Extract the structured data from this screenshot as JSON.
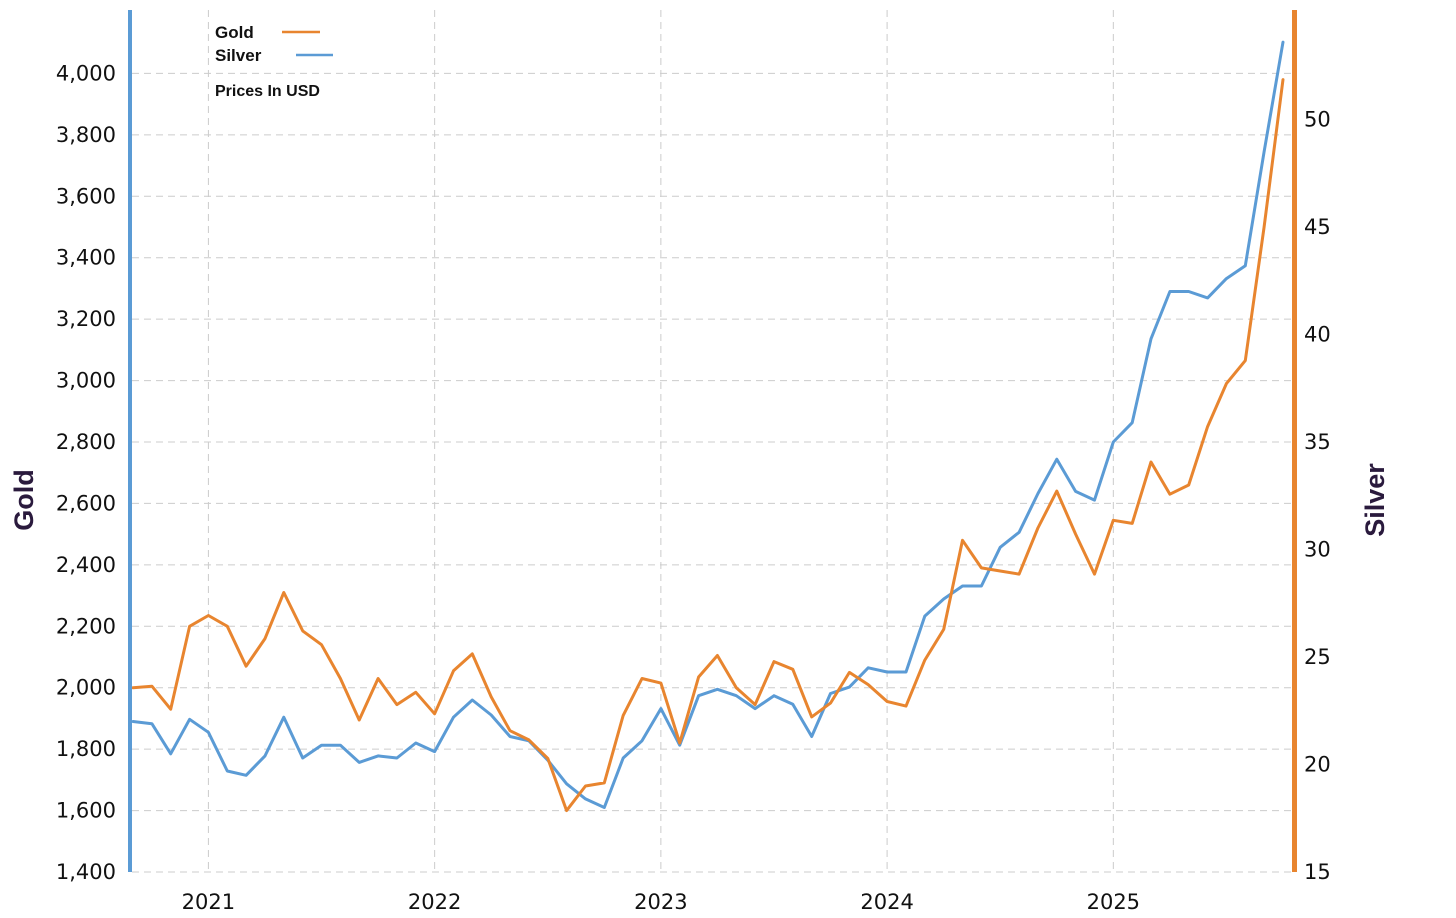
{
  "chart_data": {
    "type": "line",
    "note": "Prices In USD",
    "ylabel_left": "Gold",
    "ylabel_right": "Silver",
    "x_ticks": [
      "2021",
      "2022",
      "2023",
      "2024",
      "2025"
    ],
    "x_range": [
      "2020-09",
      "2025-10"
    ],
    "y_left": {
      "min": 1400,
      "max": 4200,
      "ticks": [
        "1,400",
        "1,600",
        "1,800",
        "2,000",
        "2,200",
        "2,400",
        "2,600",
        "2,800",
        "3,000",
        "3,200",
        "3,400",
        "3,600",
        "3,800",
        "4,000"
      ]
    },
    "y_right": {
      "min": 15,
      "max": 55,
      "ticks": [
        "15",
        "20",
        "25",
        "30",
        "35",
        "40",
        "45",
        "50"
      ]
    },
    "grid": true,
    "legend_position": "top-left",
    "x": [
      "2020-09",
      "2020-10",
      "2020-11",
      "2020-12",
      "2021-01",
      "2021-02",
      "2021-03",
      "2021-04",
      "2021-05",
      "2021-06",
      "2021-07",
      "2021-08",
      "2021-09",
      "2021-10",
      "2021-11",
      "2021-12",
      "2022-01",
      "2022-02",
      "2022-03",
      "2022-04",
      "2022-05",
      "2022-06",
      "2022-07",
      "2022-08",
      "2022-09",
      "2022-10",
      "2022-11",
      "2022-12",
      "2023-01",
      "2023-02",
      "2023-03",
      "2023-04",
      "2023-05",
      "2023-06",
      "2023-07",
      "2023-08",
      "2023-09",
      "2023-10",
      "2023-11",
      "2023-12",
      "2024-01",
      "2024-02",
      "2024-03",
      "2024-04",
      "2024-05",
      "2024-06",
      "2024-07",
      "2024-08",
      "2024-09",
      "2024-10",
      "2024-11",
      "2024-12",
      "2025-01",
      "2025-02",
      "2025-03",
      "2025-04",
      "2025-05",
      "2025-06",
      "2025-07",
      "2025-08",
      "2025-09",
      "2025-10"
    ],
    "series": [
      {
        "name": "Gold",
        "axis": "left",
        "color": "#e8852f",
        "values": [
          2000,
          2005,
          1930,
          2200,
          2235,
          2200,
          2070,
          2160,
          2310,
          2185,
          2140,
          2030,
          1895,
          2030,
          1945,
          1985,
          1915,
          2055,
          2110,
          1970,
          1860,
          1830,
          1770,
          1600,
          1680,
          1690,
          1910,
          2030,
          2015,
          1820,
          2035,
          2105,
          2000,
          1945,
          2085,
          2060,
          1905,
          1950,
          2050,
          2010,
          1955,
          1940,
          2090,
          2190,
          2480,
          2390,
          2380,
          2370,
          2520,
          2640,
          2500,
          2370,
          2545,
          2535,
          2735,
          2630,
          2660,
          2850,
          2990,
          3065,
          3500,
          3980
        ]
      },
      {
        "name": "Silver",
        "axis": "right",
        "color": "#5b9bd5",
        "values": [
          22.0,
          21.9,
          20.5,
          22.1,
          21.5,
          19.7,
          19.5,
          20.4,
          22.2,
          20.3,
          20.9,
          20.9,
          20.1,
          20.4,
          20.3,
          21.0,
          20.6,
          22.2,
          23.0,
          22.3,
          21.3,
          21.1,
          20.2,
          19.1,
          18.4,
          18.0,
          20.3,
          21.1,
          22.6,
          20.9,
          23.2,
          23.5,
          23.2,
          22.6,
          23.2,
          22.8,
          21.3,
          23.3,
          23.6,
          24.5,
          24.3,
          24.3,
          26.9,
          27.7,
          28.3,
          28.3,
          30.1,
          30.8,
          32.6,
          34.2,
          32.7,
          32.3,
          35.0,
          35.9,
          39.8,
          42.0,
          42.0,
          41.7,
          42.6,
          43.2,
          48.5,
          53.6
        ]
      }
    ]
  }
}
